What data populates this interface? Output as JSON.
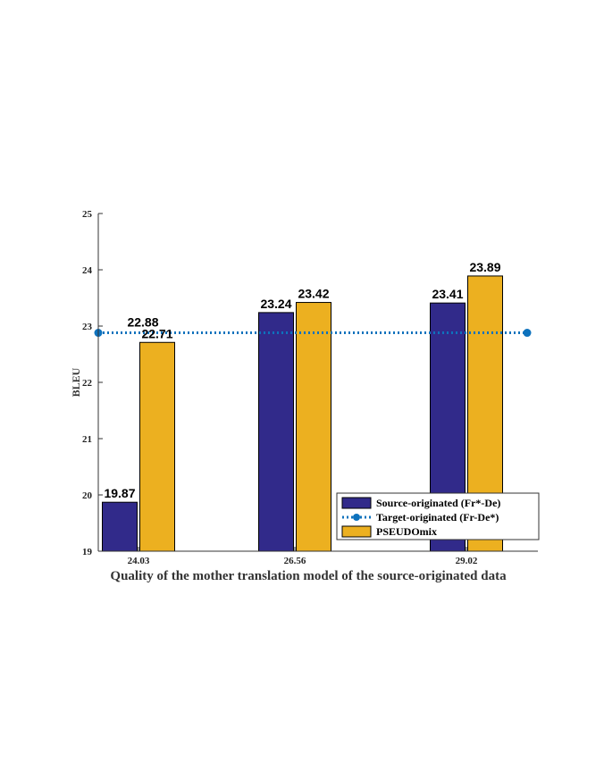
{
  "chart_data": {
    "type": "bar",
    "title": "",
    "xlabel": "Quality of the mother translation model of the source-originated data",
    "ylabel": "BLEU",
    "categories": [
      "24.03",
      "26.56",
      "29.02"
    ],
    "ylim": [
      19,
      25
    ],
    "yticks": [
      19,
      20,
      21,
      22,
      23,
      24,
      25
    ],
    "grid": false,
    "legend_position": "bottom-right",
    "series": [
      {
        "name": "Source-originated (Fr*-De)",
        "kind": "bar",
        "color": "#312a8a",
        "values": [
          19.87,
          23.24,
          23.41
        ],
        "labels": [
          "19.87",
          "23.24",
          "23.41"
        ]
      },
      {
        "name": "Target-originated (Fr-De*)",
        "kind": "line",
        "style": "dotted",
        "color": "#0e72bd",
        "value": 22.88,
        "label": "22.88"
      },
      {
        "name": "PSEUDOmix",
        "kind": "bar",
        "color": "#ecb020",
        "values": [
          22.71,
          23.42,
          23.89
        ],
        "labels": [
          "22.71",
          "23.42",
          "23.89"
        ]
      }
    ]
  }
}
